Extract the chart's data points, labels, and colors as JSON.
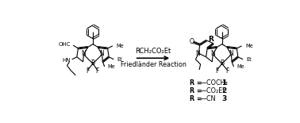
{
  "background_color": "#ffffff",
  "reagent_line1": "RCH₂CO₂Et",
  "reagent_line2": "Friedländer Reaction",
  "arrow_color": "#000000",
  "text_color": "#000000",
  "r_groups": [
    {
      "group": "—COCH₃",
      "num": "1"
    },
    {
      "group": "—CO₂Et",
      "num": "2"
    },
    {
      "group": "—CN",
      "num": "3"
    }
  ],
  "figsize": [
    3.78,
    1.55
  ],
  "dpi": 100
}
